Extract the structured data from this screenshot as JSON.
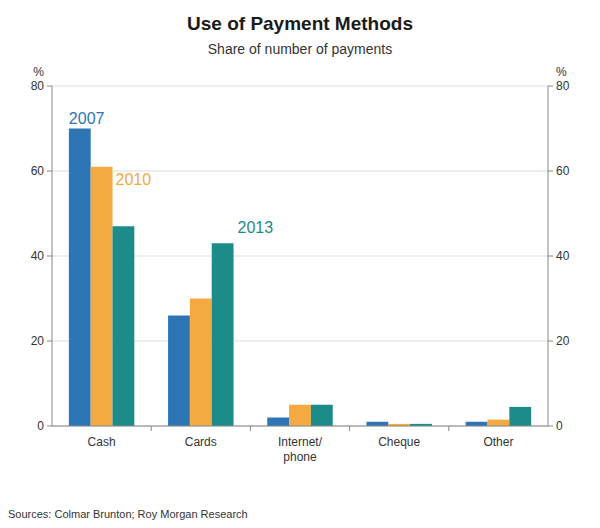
{
  "chart_data": {
    "type": "bar",
    "title": "Use of Payment Methods",
    "subtitle": "Share of number of payments",
    "ylabel": "%",
    "y2label": "%",
    "source": "Sources: Colmar Brunton; Roy Morgan Research",
    "categories": [
      "Cash",
      "Cards",
      "Internet/\nphone",
      "Cheque",
      "Other"
    ],
    "series": [
      {
        "name": "2007",
        "color": "#2E75B6",
        "values": [
          70,
          26,
          2,
          1,
          1
        ]
      },
      {
        "name": "2010",
        "color": "#F4A942",
        "values": [
          61,
          30,
          5,
          0.5,
          1.5
        ]
      },
      {
        "name": "2013",
        "color": "#1E8B8B",
        "values": [
          47,
          43,
          5,
          0.5,
          4.5
        ]
      }
    ],
    "ylim": [
      0,
      80
    ],
    "yticks": [
      0,
      20,
      40,
      60,
      80
    ],
    "y2lim": [
      0,
      80
    ],
    "y2ticks": [
      0,
      20,
      40,
      60,
      80
    ],
    "grid": true
  }
}
